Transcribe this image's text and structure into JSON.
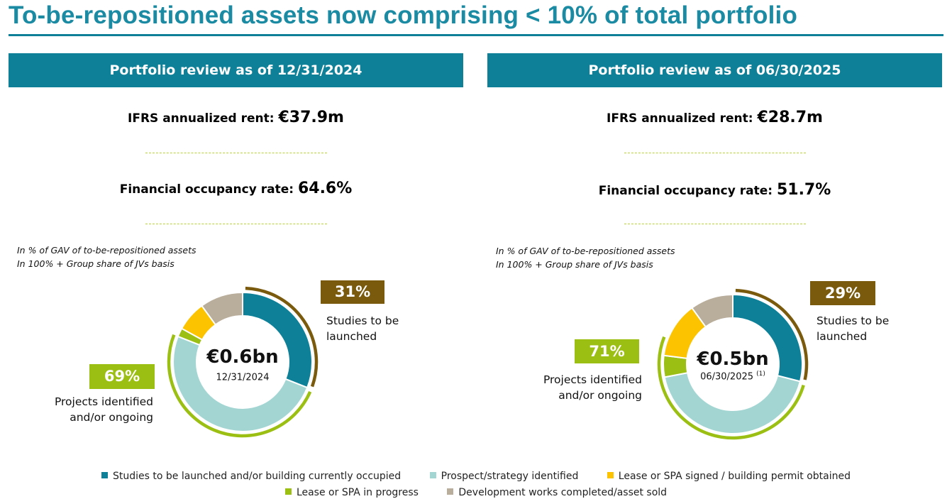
{
  "title": "To-be-repositioned assets now comprising < 10% of total portfolio",
  "colors": {
    "header": "#0e8199",
    "studies": "#0e8199",
    "prospect": "#a3d6d3",
    "lease_signed": "#fcc400",
    "lease_progress": "#9cbf14",
    "completed": "#b9ad9b",
    "arc_brown": "#7a5a0d",
    "arc_green": "#9cbf14"
  },
  "panels": [
    {
      "header": "Portfolio review as of 12/31/2024",
      "rent_label": "IFRS annualized rent",
      "rent_value": "€37.9m",
      "occupancy_label": "Financial occupancy rate",
      "occupancy_value": "64.6%",
      "note1": "In % of GAV of to-be-repositioned assets",
      "note2": "In 100% + Group share of JVs basis",
      "center_value": "€0.6bn",
      "center_date": "12/31/2024",
      "center_note": "",
      "badge_studies": "31%",
      "studies_text1": "Studies to be",
      "studies_text2": "launched",
      "badge_projects": "69%",
      "projects_text1": "Projects identified",
      "projects_text2": "and/or ongoing"
    },
    {
      "header": "Portfolio review as of 06/30/2025",
      "rent_label": "IFRS annualized rent",
      "rent_value": "€28.7m",
      "occupancy_label": "Financial occupancy rate",
      "occupancy_value": "51.7%",
      "note1": "In % of GAV of to-be-repositioned assets",
      "note2": "In 100% + Group share of JVs basis",
      "center_value": "€0.5bn",
      "center_date": "06/30/2025",
      "center_note": "(1)",
      "badge_studies": "29%",
      "studies_text1": "Studies to be",
      "studies_text2": "launched",
      "badge_projects": "71%",
      "projects_text1": "Projects identified",
      "projects_text2": "and/or ongoing"
    }
  ],
  "legend": [
    {
      "label": "Studies to be launched and/or building currently occupied",
      "color": "#0e8199"
    },
    {
      "label": "Prospect/strategy identified",
      "color": "#a3d6d3"
    },
    {
      "label": "Lease or SPA signed / building permit obtained",
      "color": "#fcc400"
    },
    {
      "label": "Lease or SPA in progress",
      "color": "#9cbf14"
    },
    {
      "label": "Development works completed/asset sold",
      "color": "#b9ad9b"
    }
  ],
  "chart_data": [
    {
      "type": "pie",
      "variant": "donut",
      "title": "Portfolio review as of 12/31/2024",
      "center_label": "€0.6bn",
      "categories": [
        "Studies to be launched and/or building currently occupied",
        "Prospect/strategy identified",
        "Lease or SPA in progress",
        "Lease or SPA signed / building permit obtained",
        "Development works completed/asset sold"
      ],
      "values": [
        31,
        50,
        2,
        7,
        10
      ],
      "unit": "% of GAV",
      "groups": [
        {
          "name": "Studies to be launched",
          "value": 31
        },
        {
          "name": "Projects identified and/or ongoing",
          "value": 69
        }
      ]
    },
    {
      "type": "pie",
      "variant": "donut",
      "title": "Portfolio review as of 06/30/2025",
      "center_label": "€0.5bn",
      "categories": [
        "Studies to be launched and/or building currently occupied",
        "Prospect/strategy identified",
        "Lease or SPA in progress",
        "Lease or SPA signed / building permit obtained",
        "Development works completed/asset sold"
      ],
      "values": [
        29,
        43,
        5,
        13,
        10
      ],
      "unit": "% of GAV",
      "groups": [
        {
          "name": "Studies to be launched",
          "value": 29
        },
        {
          "name": "Projects identified and/or ongoing",
          "value": 71
        }
      ]
    }
  ]
}
